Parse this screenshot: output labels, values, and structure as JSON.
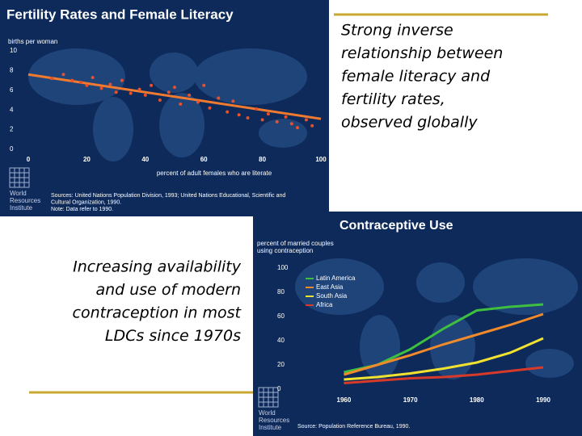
{
  "slide": {
    "captions": [
      [
        "Strong inverse",
        "relationship between",
        "female literacy and",
        "fertility rates,",
        "observed globally"
      ],
      [
        "Increasing availability",
        "and use of modern",
        "contraception in most",
        "LDCs since 1970s"
      ]
    ]
  },
  "chart_data": [
    {
      "type": "scatter",
      "title": "Fertility Rates and Female Literacy",
      "y_label": [
        "births per woman"
      ],
      "x_label": "percent of adult females who are literate",
      "xlim": [
        0,
        100
      ],
      "ylim": [
        0,
        10
      ],
      "xticks": [
        0,
        20,
        40,
        60,
        80,
        100
      ],
      "yticks": [
        0,
        2,
        4,
        6,
        8,
        10
      ],
      "series": [
        {
          "color": "#e8502a",
          "x": [
            8,
            12,
            15,
            18,
            20,
            22,
            25,
            28,
            30,
            32,
            35,
            38,
            40,
            42,
            45,
            48,
            50,
            52,
            55,
            58,
            60,
            62,
            65,
            68,
            70,
            72,
            75,
            78,
            80,
            82,
            85,
            88,
            90,
            92,
            95,
            97
          ],
          "values": [
            7.2,
            7.6,
            7.0,
            6.8,
            6.5,
            7.3,
            6.2,
            6.6,
            5.8,
            7.0,
            5.7,
            6.1,
            5.5,
            6.5,
            5.0,
            5.8,
            6.3,
            4.6,
            5.5,
            4.8,
            6.5,
            4.2,
            5.2,
            3.8,
            4.9,
            3.5,
            3.2,
            4.1,
            3.0,
            3.6,
            2.8,
            3.3,
            2.6,
            2.2,
            3.0,
            2.4
          ]
        }
      ],
      "trend_line": {
        "color": "#f07a30",
        "x": [
          0,
          100
        ],
        "values": [
          7.6,
          3.1
        ]
      },
      "notes": [
        "Sources: United Nations Population Division, 1993; United Nations Educational, Scientific and",
        "Cultural Organization, 1990.",
        "Note: Data refer to 1990."
      ],
      "logo": [
        "World",
        "Resources",
        "Institute"
      ]
    },
    {
      "type": "line",
      "title": "Contraceptive Use",
      "y_label": [
        "percent of married couples",
        "using contraception"
      ],
      "x": [
        1960,
        1965,
        1970,
        1975,
        1980,
        1985,
        1990
      ],
      "xlim": [
        1958,
        1990
      ],
      "ylim": [
        0,
        100
      ],
      "xticks": [
        1960,
        1970,
        1980,
        1990
      ],
      "yticks": [
        0,
        20,
        40,
        60,
        80,
        100
      ],
      "series": [
        {
          "name": "Latin America",
          "color": "#3fbf3f",
          "values": [
            14,
            20,
            33,
            50,
            65,
            68,
            70
          ]
        },
        {
          "name": "East Asia",
          "color": "#f08a2a",
          "values": [
            12,
            20,
            28,
            37,
            45,
            53,
            62
          ]
        },
        {
          "name": "South Asia",
          "color": "#f2e230",
          "values": [
            8,
            10,
            13,
            17,
            22,
            30,
            42
          ]
        },
        {
          "name": "Africa",
          "color": "#d83a2a",
          "values": [
            5,
            7,
            9,
            10,
            12,
            15,
            18
          ]
        }
      ],
      "notes": [
        "Source: Population Reference Bureau, 1990."
      ],
      "logo": [
        "World",
        "Resources",
        "Institute"
      ]
    }
  ]
}
